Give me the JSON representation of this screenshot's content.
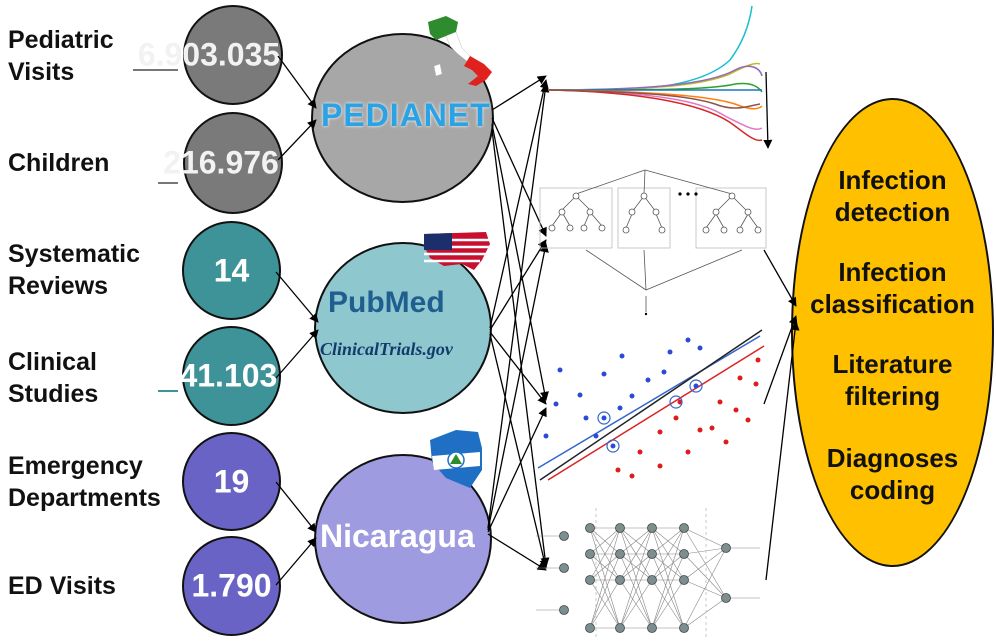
{
  "labels": {
    "pediatric_visits": "Pediatric\nVisits",
    "children": "Children",
    "systematic_reviews": "Systematic\nReviews",
    "clinical_studies": "Clinical\nStudies",
    "emergency_departments": "Emergency\nDepartments",
    "ed_visits": "ED Visits"
  },
  "counts": {
    "pediatric_visits": "6.903.035",
    "children": "216.976",
    "systematic_reviews": "14",
    "clinical_studies": "241.103",
    "emergency_departments": "19",
    "ed_visits": "1.790"
  },
  "sources": {
    "pedianet": "PEDIANET",
    "pubmed": "PubMed",
    "clinicaltrials": "ClinicalTrials.gov",
    "nicaragua": "Nicaragua"
  },
  "tasks": [
    "Infection detection",
    "Infection classification",
    "Literature filtering",
    "Diagnoses coding"
  ],
  "colors": {
    "gray_circle": "#7a7a7a",
    "teal_circle": "#3e9398",
    "purple_circle": "#6a63c6",
    "pedianet_bg": "#a7a7a7",
    "pubmed_bg": "#8fc7cf",
    "nicaragua_bg": "#9f9be0",
    "tasks_bg": "#ffc000"
  }
}
